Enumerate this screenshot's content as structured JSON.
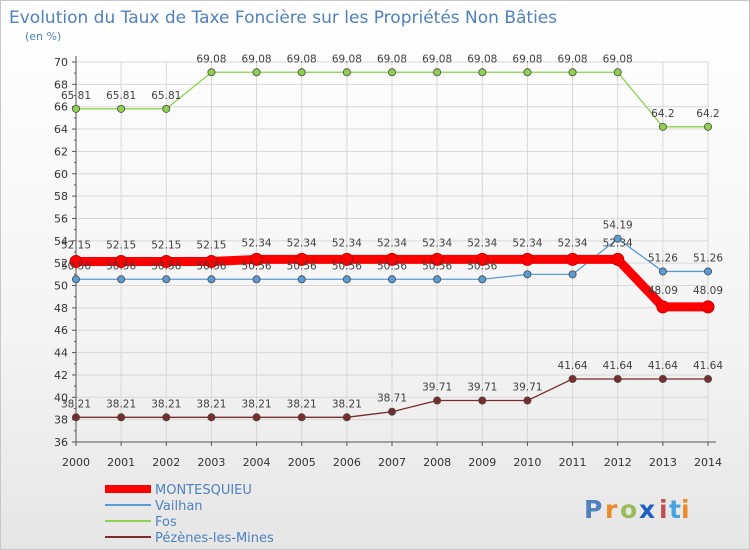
{
  "chart_data": {
    "type": "line",
    "title": "Evolution du Taux de Taxe Foncière sur les Propriétés Non Bâties",
    "subtitle": "(en %)",
    "xlabel": "",
    "ylabel": "",
    "ylim": [
      36,
      70
    ],
    "yticks": [
      "36",
      "38",
      "40",
      "42",
      "44",
      "46",
      "48",
      "50",
      "52",
      "54",
      "56",
      "58",
      "60",
      "62",
      "64",
      "66",
      "68",
      "70"
    ],
    "x": [
      "2000",
      "2001",
      "2002",
      "2003",
      "2004",
      "2005",
      "2006",
      "2007",
      "2008",
      "2009",
      "2010",
      "2011",
      "2012",
      "2013",
      "2014"
    ],
    "grid": true,
    "legend_position": "bottom-left",
    "series": [
      {
        "name": "Fos",
        "color": "#8fd14f",
        "values": [
          65.81,
          65.81,
          65.81,
          69.08,
          69.08,
          69.08,
          69.08,
          69.08,
          69.08,
          69.08,
          69.08,
          69.08,
          69.08,
          64.2,
          64.2
        ],
        "labels": [
          "65.81",
          "65.81",
          "65.81",
          "69.08",
          "69.08",
          "69.08",
          "69.08",
          "69.08",
          "69.08",
          "69.08",
          "69.08",
          "69.08",
          "69.08",
          "64.2",
          "64.2"
        ]
      },
      {
        "name": "Vailhan",
        "color": "#5b9bd5",
        "values": [
          50.56,
          50.56,
          50.56,
          50.56,
          50.56,
          50.56,
          50.56,
          50.56,
          50.56,
          50.56,
          51.0,
          51.0,
          54.19,
          51.26,
          51.26
        ],
        "labels": [
          "50.56",
          "50.56",
          "50.56",
          "50.56",
          "50.56",
          "50.56",
          "50.56",
          "50.56",
          "50.56",
          "50.56",
          "",
          "",
          "54.19",
          "51.26",
          "51.26"
        ]
      },
      {
        "name": "Pézènes-les-Mines",
        "color": "#7a2b2b",
        "values": [
          38.21,
          38.21,
          38.21,
          38.21,
          38.21,
          38.21,
          38.21,
          38.71,
          39.71,
          39.71,
          39.71,
          41.64,
          41.64,
          41.64,
          41.64
        ],
        "labels": [
          "38.21",
          "38.21",
          "38.21",
          "38.21",
          "38.21",
          "38.21",
          "38.21",
          "38.71",
          "39.71",
          "39.71",
          "39.71",
          "41.64",
          "41.64",
          "41.64",
          "41.64"
        ]
      },
      {
        "name": "MONTESQUIEU",
        "color": "#ff0000",
        "values": [
          52.15,
          52.15,
          52.15,
          52.15,
          52.34,
          52.34,
          52.34,
          52.34,
          52.34,
          52.34,
          52.34,
          52.34,
          52.34,
          48.09,
          48.09
        ],
        "labels": [
          "52.15",
          "52.15",
          "52.15",
          "52.15",
          "52.34",
          "52.34",
          "52.34",
          "52.34",
          "52.34",
          "52.34",
          "52.34",
          "52.34",
          "52.34",
          "48.09",
          "48.09"
        ]
      }
    ],
    "legend": [
      "MONTESQUIEU",
      "Vailhan",
      "Fos",
      "Pézènes-les-Mines"
    ]
  },
  "logo": {
    "text": "Proxiti",
    "letter_colors": [
      "#4f81bd",
      "#e98b2a",
      "#9bbb59",
      "#1f5fbf",
      "#c0504d",
      "#4aa3df",
      "#e98b2a"
    ]
  },
  "colors": {
    "title": "#4f81bd",
    "grid": "#d8d8d8",
    "axis": "#555555"
  }
}
